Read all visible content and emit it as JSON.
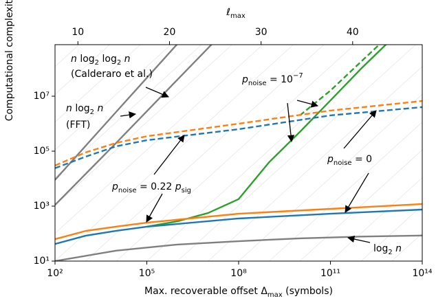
{
  "chart_data": {
    "type": "line",
    "x_label": {
      "parts": [
        {
          "text": "Max. recoverable offset Δ"
        },
        {
          "text": "max",
          "sub": true
        },
        {
          "text": " (symbols)"
        }
      ]
    },
    "y_label": "Computational complexity",
    "x2_label": {
      "parts": [
        {
          "text": "ℓ",
          "italic": true
        },
        {
          "text": "max",
          "sub": true
        }
      ]
    },
    "xscale": "log",
    "yscale": "log",
    "xlim": [
      100,
      100000000000000.0
    ],
    "ylim": [
      10,
      750000000.0
    ],
    "xticks": [
      {
        "value": 100,
        "label": "10²"
      },
      {
        "value": 100000,
        "label": "10⁵"
      },
      {
        "value": 100000000.0,
        "label": "10⁸"
      },
      {
        "value": 100000000000.0,
        "label": "10¹¹"
      },
      {
        "value": 100000000000000.0,
        "label": "10¹⁴"
      }
    ],
    "yticks": [
      {
        "value": 10,
        "label": "10¹"
      },
      {
        "value": 1000,
        "label": "10³"
      },
      {
        "value": 100000,
        "label": "10⁵"
      },
      {
        "value": 10000000.0,
        "label": "10⁷"
      }
    ],
    "x2lim": [
      7.5,
      47.6
    ],
    "x2ticks": [
      10,
      20,
      30,
      40
    ],
    "series": [
      {
        "color": "#7f7f7f",
        "linestyle": "solid",
        "x": [
          100,
          10000,
          1000000
        ],
        "values": [
          9000,
          2700000,
          800000000
        ]
      },
      {
        "color": "#7f7f7f",
        "linestyle": "solid",
        "x": [
          100,
          10000,
          1000000,
          10000000,
          100000000
        ],
        "values": [
          1100,
          200000,
          40000000,
          560000000,
          8000000000
        ]
      },
      {
        "color": "#7f7f7f",
        "linestyle": "solid",
        "x": [
          100,
          10000,
          1000000,
          100000000.0,
          10000000000.0,
          1000000000000.0,
          100000000000000.0
        ],
        "values": [
          10,
          24,
          40,
          53,
          67,
          78,
          85
        ]
      },
      {
        "color": "#2ca02c",
        "linestyle": "solid",
        "x": [
          100000,
          1000000,
          10000000,
          100000000.0,
          1000000000.0,
          10000000000.0,
          100000000000.0,
          1000000000000.0,
          10000000000000.0
        ],
        "values": [
          178,
          280,
          560,
          1800,
          40000,
          500000,
          7000000,
          100000000,
          1200000000
        ]
      },
      {
        "color": "#2ca02c",
        "linestyle": "dashed",
        "x": [
          10000000000.0,
          100000000000.0,
          1000000000000.0,
          10000000000000.0
        ],
        "values": [
          2000000,
          16000000,
          180000000,
          2000000000
        ]
      },
      {
        "color": "#1f77b4",
        "linestyle": "dashed",
        "x": [
          100,
          1000,
          10000,
          100000,
          100000000.0,
          100000000000.0,
          100000000000000.0
        ],
        "values": [
          24000,
          63000,
          150000,
          250000,
          630000,
          2000000,
          4000000
        ]
      },
      {
        "color": "#ff7f0e",
        "linestyle": "dashed",
        "x": [
          100,
          1000,
          10000,
          100000,
          100000000.0,
          100000000000.0,
          100000000000000.0
        ],
        "values": [
          30000,
          90000,
          200000,
          350000,
          1000000,
          3000000,
          6700000
        ]
      },
      {
        "color": "#1f77b4",
        "linestyle": "solid",
        "x": [
          100,
          1000,
          10000,
          100000,
          100000000.0,
          100000000000.0,
          100000000000000.0
        ],
        "values": [
          42,
          84,
          126,
          178,
          355,
          530,
          750
        ]
      },
      {
        "color": "#ff7f0e",
        "linestyle": "solid",
        "x": [
          100,
          1000,
          10000,
          100000,
          100000000.0,
          100000000000.0,
          100000000000000.0
        ],
        "values": [
          63,
          125,
          180,
          250,
          530,
          795,
          1190
        ]
      }
    ],
    "annotations": [
      {
        "lines": [
          {
            "parts": [
              {
                "text": "n",
                "italic": true
              },
              {
                "text": " log"
              },
              {
                "text": "2",
                "sub": true
              },
              {
                "text": " log"
              },
              {
                "text": "2",
                "sub": true
              },
              {
                "text": " n",
                "italic": true
              }
            ]
          },
          {
            "parts": [
              {
                "text": "(Calderaro et al.)"
              }
            ]
          }
        ]
      },
      {
        "lines": [
          {
            "parts": [
              {
                "text": "n",
                "italic": true
              },
              {
                "text": " log"
              },
              {
                "text": "2",
                "sub": true
              },
              {
                "text": " n",
                "italic": true
              }
            ]
          },
          {
            "parts": [
              {
                "text": "(FFT)"
              }
            ]
          }
        ]
      },
      {
        "lines": [
          {
            "parts": [
              {
                "text": "p",
                "italic": true
              },
              {
                "text": "noise",
                "sub": true
              },
              {
                "text": " = 10"
              },
              {
                "text": "−7",
                "sup": true
              }
            ]
          }
        ]
      },
      {
        "lines": [
          {
            "parts": [
              {
                "text": "p",
                "italic": true
              },
              {
                "text": "noise",
                "sub": true
              },
              {
                "text": " = 0.22 "
              },
              {
                "text": "p",
                "italic": true
              },
              {
                "text": "sig",
                "sub": true
              }
            ]
          }
        ]
      },
      {
        "lines": [
          {
            "parts": [
              {
                "text": "p",
                "italic": true
              },
              {
                "text": "noise",
                "sub": true
              },
              {
                "text": " = 0"
              }
            ]
          }
        ]
      },
      {
        "lines": [
          {
            "parts": [
              {
                "text": "log"
              },
              {
                "text": "2",
                "sub": true
              },
              {
                "text": " n",
                "italic": true
              }
            ]
          }
        ]
      }
    ]
  }
}
